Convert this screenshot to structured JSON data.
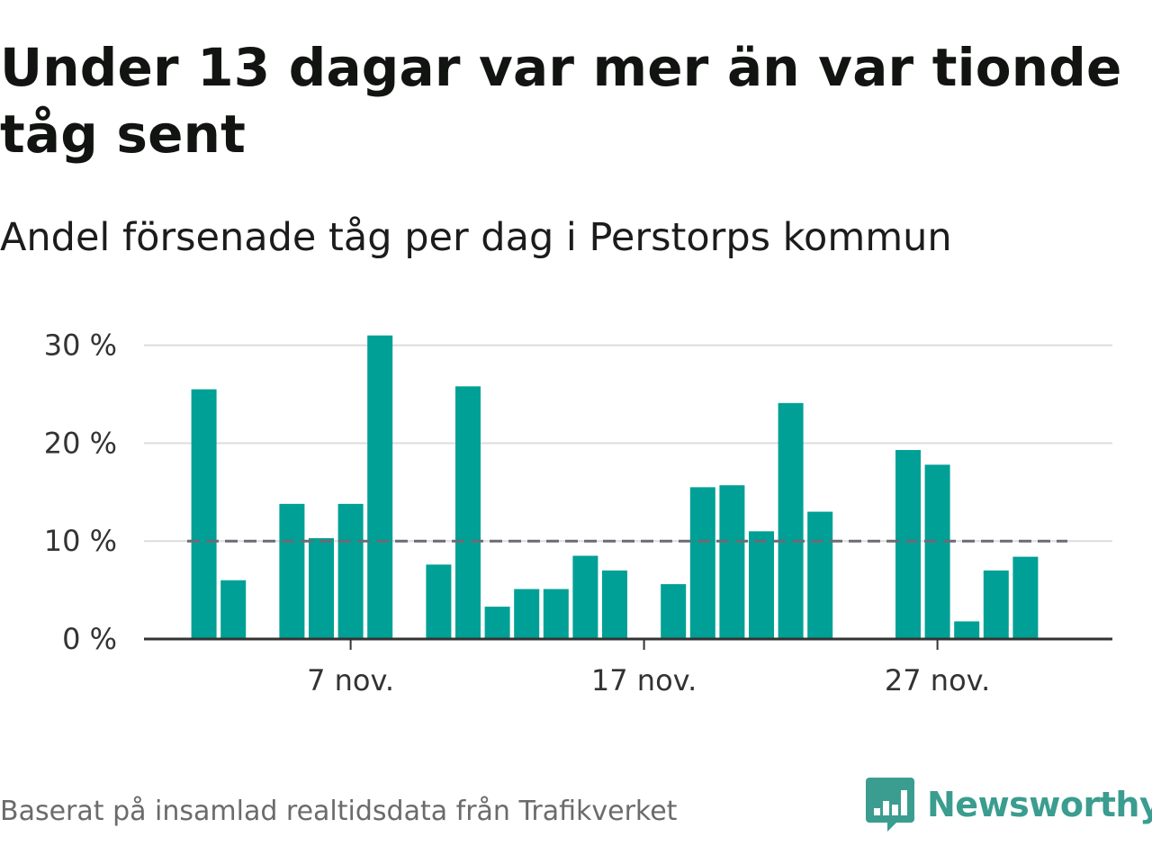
{
  "title": "Under 13 dagar var mer än var tionde tåg sent",
  "subtitle": "Andel försenade tåg per dag i Perstorps kommun",
  "source": "Baserat på insamlad realtidsdata från Trafikverket",
  "brand": {
    "name": "Newsworthy",
    "icon": "newsworthy-logo-icon"
  },
  "colors": {
    "bar": "#00a096",
    "reference": "#6b6b74",
    "grid": "#dddddd",
    "axis": "#333333",
    "brand": "#3a9d8f"
  },
  "chart_data": {
    "type": "bar",
    "x": [
      "1 nov.",
      "2 nov.",
      "3 nov.",
      "4 nov.",
      "5 nov.",
      "6 nov.",
      "7 nov.",
      "8 nov.",
      "9 nov.",
      "10 nov.",
      "11 nov.",
      "12 nov.",
      "13 nov.",
      "14 nov.",
      "15 nov.",
      "16 nov.",
      "17 nov.",
      "18 nov.",
      "19 nov.",
      "20 nov.",
      "21 nov.",
      "22 nov.",
      "23 nov.",
      "24 nov.",
      "25 nov.",
      "26 nov.",
      "27 nov.",
      "28 nov.",
      "29 nov.",
      "30 nov."
    ],
    "values": [
      null,
      25.5,
      6.0,
      null,
      13.8,
      10.3,
      13.8,
      31.0,
      null,
      7.6,
      25.8,
      3.3,
      5.1,
      5.1,
      8.5,
      7.0,
      null,
      5.6,
      15.5,
      15.7,
      11.0,
      24.1,
      13.0,
      null,
      null,
      19.3,
      17.8,
      1.8,
      7.0,
      8.4
    ],
    "x_ticks": [
      "7 nov.",
      "17 nov.",
      "27 nov."
    ],
    "y_ticks": [
      "0 %",
      "10 %",
      "20 %",
      "30 %"
    ],
    "y_tick_values": [
      0,
      10,
      20,
      30
    ],
    "ylim": [
      0,
      31
    ],
    "reference_line": 10,
    "grid": true,
    "xlabel": "",
    "ylabel": ""
  }
}
